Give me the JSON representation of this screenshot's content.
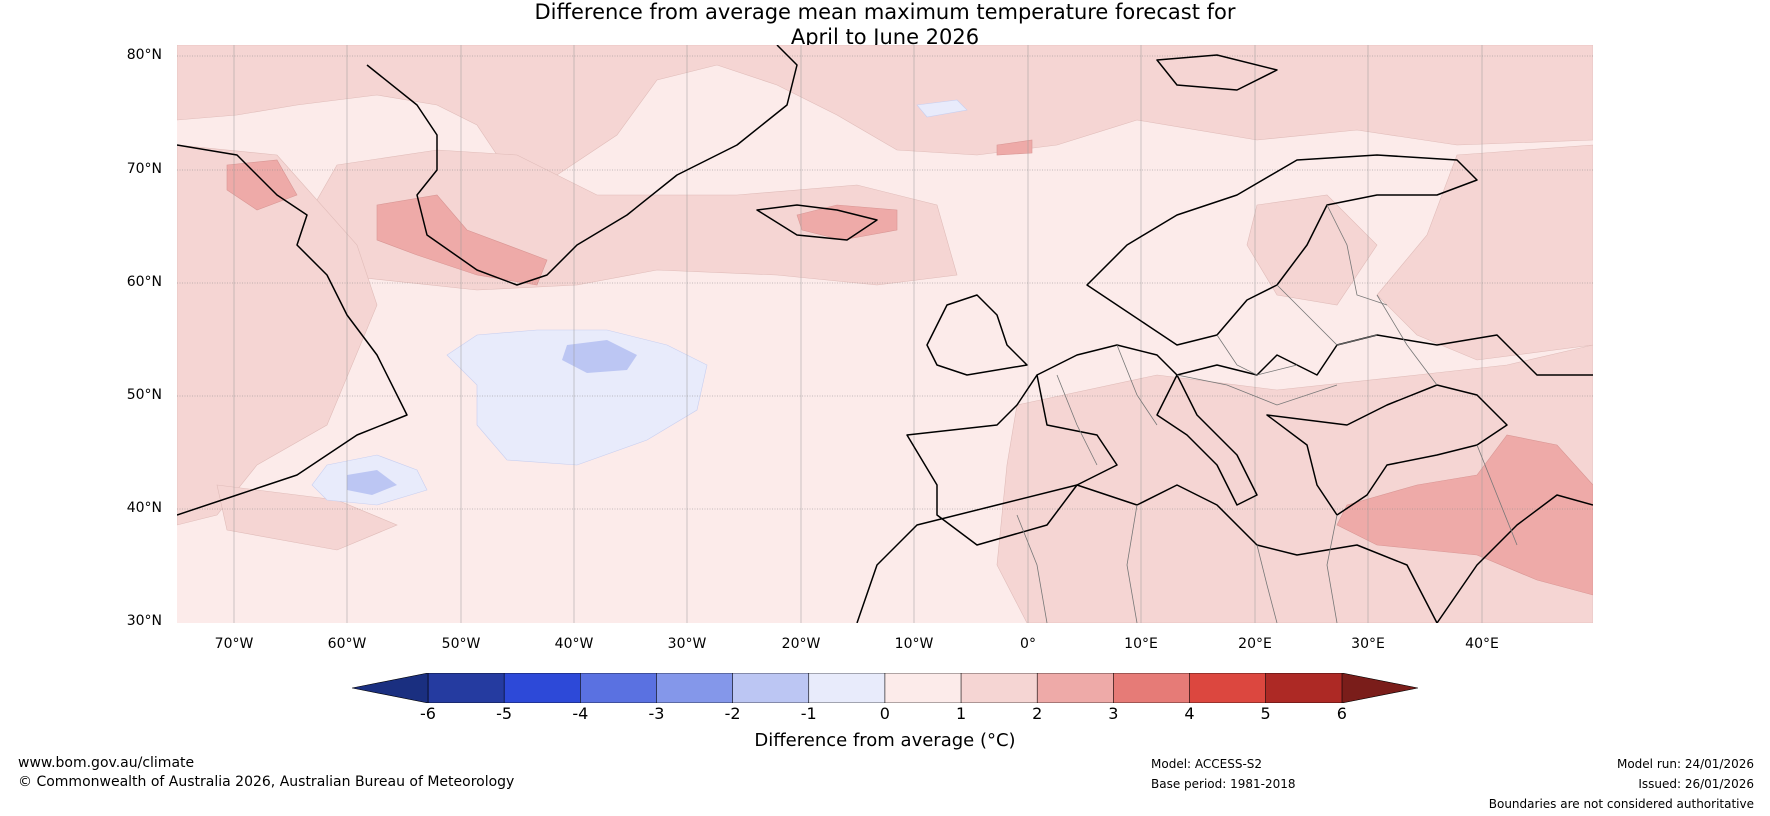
{
  "title": {
    "line1": "Difference from average mean maximum temperature forecast for",
    "line2": "April to June 2026"
  },
  "map": {
    "lat_labels": [
      "80°N",
      "70°N",
      "60°N",
      "50°N",
      "40°N",
      "30°N"
    ],
    "lon_labels": [
      "70°W",
      "60°W",
      "50°W",
      "40°W",
      "30°W",
      "20°W",
      "10°W",
      "0°",
      "10°E",
      "20°E",
      "30°E",
      "40°E"
    ],
    "palette": {
      "n6": "#253ba0",
      "n5": "#2d49d8",
      "n4": "#5a71e1",
      "n3": "#8497ea",
      "n2": "#bcc6f3",
      "n1": "#e8ebfb",
      "p0": "#fcebea",
      "p1": "#f5d5d3",
      "p2": "#eeaaa8",
      "p3": "#e67b77",
      "p4": "#dc473f",
      "p5": "#ad2925",
      "p6": "#7a1d1a"
    }
  },
  "colorbar": {
    "ticks": [
      "-6",
      "-5",
      "-4",
      "-3",
      "-2",
      "-1",
      "0",
      "1",
      "2",
      "3",
      "4",
      "5",
      "6"
    ],
    "title": "Difference from average (°C)",
    "colors": [
      "#253ba0",
      "#2d49d8",
      "#5a71e1",
      "#8497ea",
      "#bcc6f3",
      "#e8ebfb",
      "#fcebea",
      "#f5d5d3",
      "#eeaaa8",
      "#e67b77",
      "#dc473f",
      "#ad2925"
    ],
    "low_extend": "#1a2f80",
    "high_extend": "#7a1d1a"
  },
  "footer": {
    "website": "www.bom.gov.au/climate",
    "copyright": "© Commonwealth of Australia 2026, Australian Bureau of Meteorology",
    "model": "Model: ACCESS-S2",
    "base_period": "Base period: 1981-2018",
    "model_run": "Model run: 24/01/2026",
    "issued": "Issued: 26/01/2026",
    "disclaimer": "Boundaries are not considered authoritative"
  }
}
